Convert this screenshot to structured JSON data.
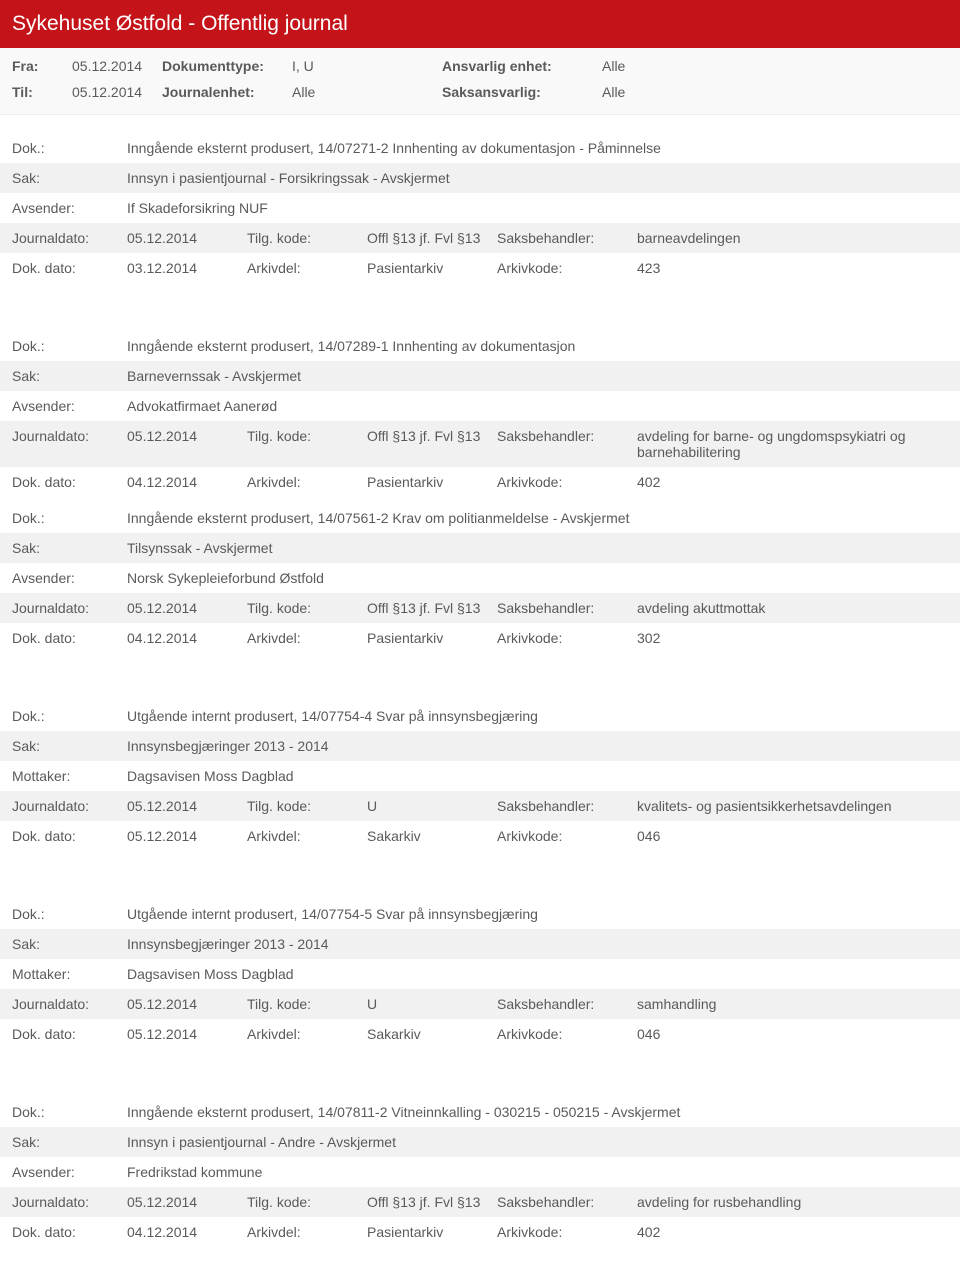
{
  "header": {
    "title": "Sykehuset Østfold - Offentlig journal",
    "fra_label": "Fra:",
    "fra_value": "05.12.2014",
    "til_label": "Til:",
    "til_value": "05.12.2014",
    "dokumenttype_label": "Dokumenttype:",
    "dokumenttype_value": "I, U",
    "journalenhet_label": "Journalenhet:",
    "journalenhet_value": "Alle",
    "ansvarlig_label": "Ansvarlig enhet:",
    "ansvarlig_value": "Alle",
    "saksansvarlig_label": "Saksansvarlig:",
    "saksansvarlig_value": "Alle"
  },
  "labels": {
    "dok": "Dok.:",
    "sak": "Sak:",
    "avsender": "Avsender:",
    "mottaker": "Mottaker:",
    "journaldato": "Journaldato:",
    "dokdato": "Dok. dato:",
    "tilgkode": "Tilg. kode:",
    "arkivdel": "Arkivdel:",
    "saksbehandler": "Saksbehandler:",
    "arkivkode": "Arkivkode:"
  },
  "entries": [
    {
      "dok": "Inngående eksternt produsert, 14/07271-2 Innhenting av dokumentasjon - Påminnelse",
      "sak": "Innsyn i pasientjournal - Forsikringssak - Avskjermet",
      "party_label": "Avsender:",
      "party": "If Skadeforsikring NUF",
      "journaldato": "05.12.2014",
      "tilg": "Offl §13 jf. Fvl §13",
      "saksb": "barneavdelingen",
      "dokdato": "03.12.2014",
      "arkivdel": "Pasientarkiv",
      "arkivkode": "423"
    },
    {
      "dok": "Inngående eksternt produsert, 14/07289-1 Innhenting av dokumentasjon",
      "sak": "Barnevernssak - Avskjermet",
      "party_label": "Avsender:",
      "party": "Advokatfirmaet Aanerød",
      "journaldato": "05.12.2014",
      "tilg": "Offl §13 jf. Fvl §13",
      "saksb": "avdeling for barne- og ungdomspsykiatri og barnehabilitering",
      "dokdato": "04.12.2014",
      "arkivdel": "Pasientarkiv",
      "arkivkode": "402"
    },
    {
      "dok": "Inngående eksternt produsert, 14/07561-2 Krav om politianmeldelse - Avskjermet",
      "sak": "Tilsynssak - Avskjermet",
      "party_label": "Avsender:",
      "party": "Norsk Sykepleieforbund Østfold",
      "journaldato": "05.12.2014",
      "tilg": "Offl §13 jf. Fvl §13",
      "saksb": "avdeling akuttmottak",
      "dokdato": "04.12.2014",
      "arkivdel": "Pasientarkiv",
      "arkivkode": "302"
    },
    {
      "dok": "Utgående internt produsert, 14/07754-4 Svar på innsynsbegjæring",
      "sak": "Innsynsbegjæringer 2013 - 2014",
      "party_label": "Mottaker:",
      "party": "Dagsavisen Moss Dagblad",
      "journaldato": "05.12.2014",
      "tilg": "U",
      "saksb": "kvalitets- og pasientsikkerhetsavdelingen",
      "dokdato": "05.12.2014",
      "arkivdel": "Sakarkiv",
      "arkivkode": "046"
    },
    {
      "dok": "Utgående internt produsert, 14/07754-5 Svar på innsynsbegjæring",
      "sak": "Innsynsbegjæringer 2013 - 2014",
      "party_label": "Mottaker:",
      "party": "Dagsavisen Moss Dagblad",
      "journaldato": "05.12.2014",
      "tilg": "U",
      "saksb": "samhandling",
      "dokdato": "05.12.2014",
      "arkivdel": "Sakarkiv",
      "arkivkode": "046"
    },
    {
      "dok": "Inngående eksternt produsert, 14/07811-2 Vitneinnkalling  - 030215 - 050215 - Avskjermet",
      "sak": "Innsyn i pasientjournal - Andre - Avskjermet",
      "party_label": "Avsender:",
      "party": "Fredrikstad kommune",
      "journaldato": "05.12.2014",
      "tilg": "Offl §13 jf. Fvl §13",
      "saksb": "avdeling for rusbehandling",
      "dokdato": "04.12.2014",
      "arkivdel": "Pasientarkiv",
      "arkivkode": "402"
    }
  ],
  "colors": {
    "header_bg": "#c4141a",
    "header_text": "#ffffff",
    "filter_bg": "#f9f9f9",
    "row_alt": "#f1f1f1",
    "text": "#5a5a5a"
  }
}
